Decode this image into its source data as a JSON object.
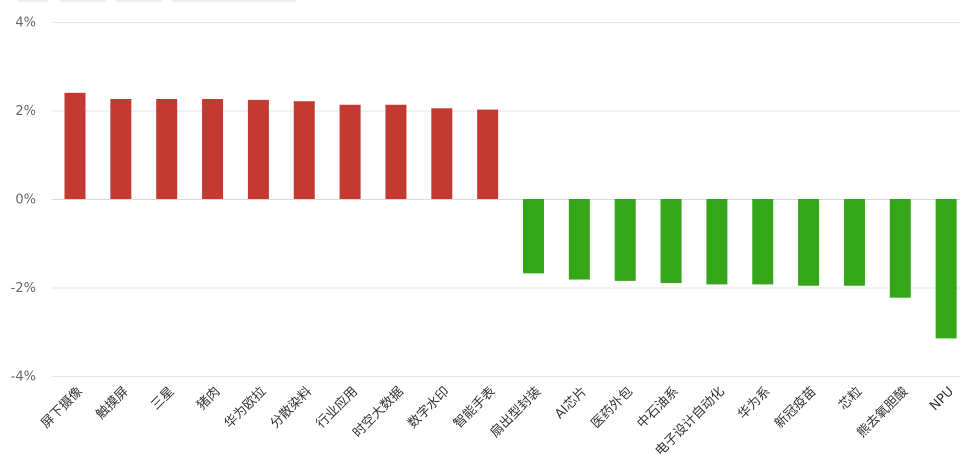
{
  "chart_data": {
    "type": "bar",
    "title": "",
    "xlabel": "",
    "ylabel": "",
    "ylim": [
      -4,
      4
    ],
    "yticks": [
      4,
      2,
      0,
      -2,
      -4
    ],
    "ytick_labels": [
      "4%",
      "2%",
      "0%",
      "-2%",
      "-4%"
    ],
    "grid": true,
    "legend": "none",
    "colors": {
      "positive": "#c23a32",
      "negative": "#35a617",
      "grid": "#e6e6e6",
      "tick_text": "#666666",
      "category_text": "#333333"
    },
    "categories": [
      "屏下摄像",
      "触摸屏",
      "三星",
      "猪肉",
      "华为欧拉",
      "分散染料",
      "行业应用",
      "时空大数据",
      "数字水印",
      "智能手表",
      "扇出型封装",
      "AI芯片",
      "医药外包",
      "中石油系",
      "电子设计自动化",
      "华为系",
      "新冠疫苗",
      "芯粒",
      "熊去氧胆酸",
      "NPU"
    ],
    "values": [
      2.4,
      2.26,
      2.26,
      2.26,
      2.24,
      2.21,
      2.13,
      2.13,
      2.05,
      2.02,
      -1.68,
      -1.82,
      -1.85,
      -1.9,
      -1.93,
      -1.93,
      -1.96,
      -1.96,
      -2.23,
      -3.15
    ]
  }
}
